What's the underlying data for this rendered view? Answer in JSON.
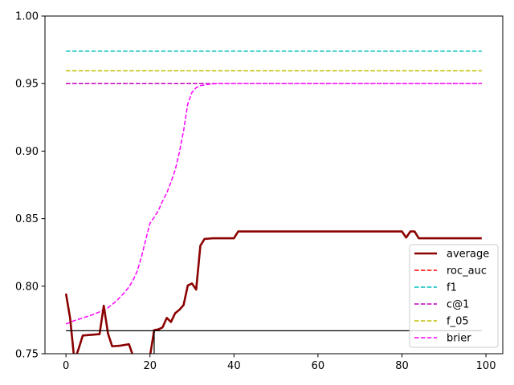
{
  "chart_data": {
    "type": "line",
    "xlim": [
      -5,
      104
    ],
    "ylim": [
      0.75,
      1.0
    ],
    "x_ticks": [
      0,
      20,
      40,
      60,
      80,
      100
    ],
    "y_ticks": [
      0.75,
      0.8,
      0.85,
      0.9,
      0.95,
      1.0
    ],
    "x_tick_labels": [
      "0",
      "20",
      "40",
      "60",
      "80",
      "100"
    ],
    "y_tick_labels": [
      "0.75",
      "0.80",
      "0.85",
      "0.90",
      "0.95",
      "1.00"
    ],
    "grid": false,
    "legend_position": "lower-right",
    "series": [
      {
        "name": "average",
        "color": "#8b0000",
        "style": "solid",
        "x": [
          0,
          1,
          2,
          3,
          4,
          6,
          8,
          9,
          10,
          11,
          13,
          15,
          16,
          20,
          21,
          22,
          23,
          24,
          25,
          26,
          27,
          28,
          29,
          30,
          31,
          32,
          33,
          35,
          38,
          40,
          41,
          45,
          50,
          60,
          70,
          78,
          80,
          81,
          82,
          83,
          84,
          90,
          99
        ],
        "y": [
          0.7945,
          0.776,
          0.745,
          0.7535,
          0.7635,
          0.764,
          0.7645,
          0.7855,
          0.765,
          0.7555,
          0.756,
          0.757,
          0.748,
          0.748,
          0.7675,
          0.768,
          0.7695,
          0.7765,
          0.7735,
          0.78,
          0.7825,
          0.786,
          0.8005,
          0.802,
          0.7975,
          0.83,
          0.835,
          0.8355,
          0.8355,
          0.8355,
          0.8405,
          0.8405,
          0.8405,
          0.8405,
          0.8405,
          0.8405,
          0.8405,
          0.836,
          0.8405,
          0.8405,
          0.8355,
          0.8355,
          0.8355
        ]
      },
      {
        "name": "roc_auc",
        "color": "#ff0000",
        "style": "dashed",
        "x": [
          0,
          99
        ],
        "y": [
          0.95,
          0.95
        ]
      },
      {
        "name": "f1",
        "color": "#00bfbf",
        "style": "dashed",
        "x": [
          0,
          99
        ],
        "y": [
          0.974,
          0.974
        ]
      },
      {
        "name": "c@1",
        "color": "#bf00bf",
        "style": "dashed",
        "x": [
          0,
          99
        ],
        "y": [
          0.95,
          0.95
        ]
      },
      {
        "name": "f_05",
        "color": "#bfbf00",
        "style": "dashed",
        "x": [
          0,
          99
        ],
        "y": [
          0.9595,
          0.9595
        ]
      },
      {
        "name": "brier",
        "color": "#ff00ff",
        "style": "dashed",
        "x": [
          0,
          2,
          4,
          6,
          8,
          10,
          12,
          14,
          15,
          16,
          17,
          18,
          19,
          20,
          21,
          22,
          23,
          24,
          25,
          26,
          27,
          28,
          29,
          30,
          31,
          32,
          33,
          34,
          36,
          40,
          50,
          99
        ],
        "y": [
          0.772,
          0.7745,
          0.7765,
          0.7785,
          0.781,
          0.784,
          0.789,
          0.7955,
          0.7995,
          0.8045,
          0.8115,
          0.822,
          0.8345,
          0.8465,
          0.851,
          0.856,
          0.863,
          0.869,
          0.877,
          0.886,
          0.899,
          0.915,
          0.935,
          0.9435,
          0.947,
          0.9485,
          0.949,
          0.9495,
          0.95,
          0.95,
          0.95,
          0.95
        ]
      }
    ],
    "reference_line": {
      "color": "#000000",
      "x": [
        0,
        99
      ],
      "y": [
        0.767,
        0.767
      ]
    },
    "vertical_marker": {
      "color": "#000000",
      "x": 21,
      "y": [
        0.75,
        0.7675
      ]
    }
  }
}
